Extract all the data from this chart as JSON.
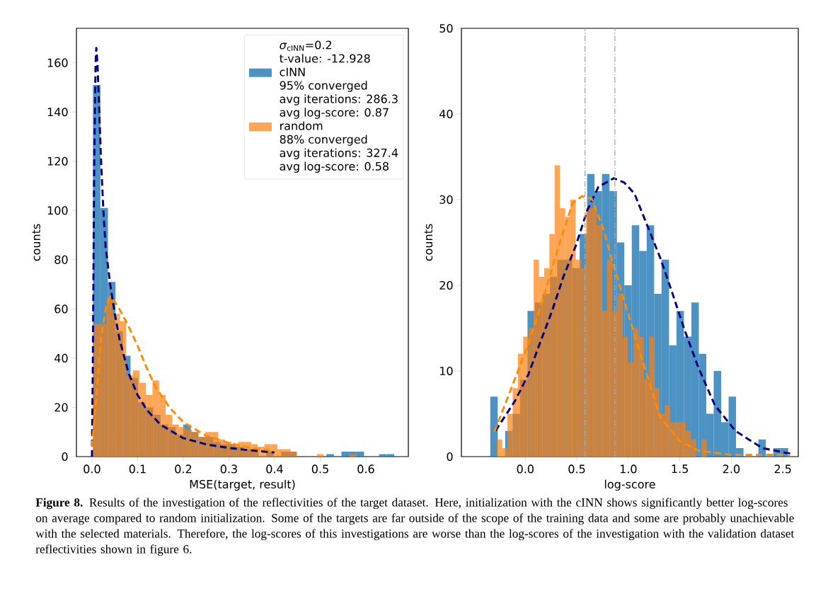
{
  "chart_data": [
    {
      "type": "histogram",
      "xlabel": "MSE(target, result)",
      "ylabel": "counts",
      "legend_title": "*σ*$_{cINN}$=0.2",
      "legend": "top right",
      "xlim": [
        -0.034,
        0.693
      ],
      "ylim": [
        0,
        174
      ],
      "xticks": [
        {
          "value": 0,
          "label": "0.0"
        },
        0.1,
        0.2,
        0.3,
        0.4,
        0.5,
        0.6
      ],
      "yticks": [
        0,
        20,
        40,
        60,
        80,
        100,
        120,
        140,
        160
      ],
      "annotations": [
        "t-value: -12.928",
        "95% converged",
        "avg iterations: 286.3",
        "avg log-score: 0.87",
        "88% converged",
        "avg iterations: 327.4",
        "avg log-score: 0.58"
      ],
      "series": [
        {
          "name": "cINN",
          "color": "#1f77b4",
          "bins": [
            0.002,
            0.0185,
            0.035,
            0.0515,
            0.068,
            0.0845,
            0.101,
            0.1175,
            0.134,
            0.1505,
            0.167,
            0.1835,
            0.2,
            0.2165,
            0.233,
            0.2495,
            0.266,
            0.2825,
            0.299,
            0.3155,
            0.332,
            0.3485,
            0.365,
            0.3815,
            0.398,
            0.4145,
            0.431,
            0.4475,
            0.464,
            0.4805,
            0.497,
            0.5135,
            0.53,
            0.5465,
            0.563,
            0.5795,
            0.596,
            0.6125,
            0.629,
            0.6455,
            0.662
          ],
          "values": [
            151,
            101,
            71,
            51,
            41,
            32,
            22,
            20,
            17,
            13,
            12,
            9,
            13,
            10,
            8,
            8,
            6,
            5,
            5,
            4,
            3,
            3,
            null,
            2,
            null,
            2,
            2,
            0,
            0,
            0,
            0,
            1,
            0,
            2,
            2,
            2,
            0,
            0,
            1,
            1
          ]
        },
        {
          "name": "random",
          "color": "#ff7f0e",
          "bins": [
            0.003,
            0.0174,
            0.0318,
            0.0462,
            0.0606,
            0.075,
            0.0894,
            0.1038,
            0.1182,
            0.1326,
            0.147,
            0.1614,
            0.1758,
            0.1902,
            0.2046,
            0.219,
            0.2334,
            0.2478,
            0.2622,
            0.2766,
            0.291,
            0.3054,
            0.3198,
            0.3342,
            0.3486,
            0.363,
            0.3774,
            0.3918,
            0.4062,
            0.4206,
            0.435,
            0.4494,
            0.4638,
            0.4782,
            0.4926,
            0.507,
            0.5214,
            0.5358,
            0.5502,
            0.5646,
            0.579
          ],
          "values": [
            54,
            54,
            64,
            58,
            55,
            33,
            35,
            30,
            25,
            31,
            25,
            17,
            13,
            12,
            11,
            10,
            8,
            10,
            10,
            7,
            6,
            5,
            6,
            6,
            5,
            4,
            5,
            5,
            3,
            3,
            2,
            0,
            0,
            0,
            1,
            0,
            0,
            0,
            0,
            1
          ]
        },
        {
          "type": "line",
          "color": "#000080",
          "line_style": "dashed",
          "x": [
            0.0,
            0.002,
            0.005,
            0.008,
            0.0095,
            0.012,
            0.016,
            0.02,
            0.025,
            0.03,
            0.04,
            0.05,
            0.06,
            0.08,
            0.1,
            0.12,
            0.15,
            0.2,
            0.25,
            0.3,
            0.35,
            0.4
          ],
          "values": [
            0,
            40,
            120,
            160,
            166,
            160,
            140,
            120,
            100,
            85,
            70,
            58,
            48,
            34,
            25,
            19,
            13,
            7.5,
            5,
            3.5,
            2.5,
            1.7
          ]
        },
        {
          "type": "line",
          "color": "#ff8c00",
          "line_style": "dashed",
          "x": [
            0.0,
            0.01,
            0.02,
            0.03,
            0.04,
            0.05,
            0.06,
            0.08,
            0.1,
            0.12,
            0.14,
            0.17,
            0.2,
            0.25,
            0.3,
            0.35,
            0.4
          ],
          "values": [
            4,
            25,
            48,
            60,
            65,
            63,
            60,
            53,
            45,
            36,
            28,
            20,
            14,
            8.5,
            5.5,
            3.5,
            2.5
          ]
        }
      ]
    },
    {
      "type": "histogram",
      "xlabel": "log-score",
      "ylabel": "counts",
      "xlim": [
        -0.62,
        2.65
      ],
      "ylim": [
        0,
        50
      ],
      "xticks": [
        {
          "value": 0,
          "label": "0.0"
        },
        0.5,
        {
          "value": 1,
          "label": "1.0"
        },
        1.5,
        {
          "value": 2,
          "label": "2.0"
        },
        2.5
      ],
      "yticks": [
        0,
        10,
        20,
        30,
        40,
        50
      ],
      "annotations": [
        "**Figure 8.** Results of the investigation of the reflectivities of the target dataset. Here, initialization with the cINN shows significantly better log-scores on average compared to random initialization. Some of the targets are far outside of the scope of the training data and some are probably unachievable with the selected materials. Therefore, the log-scores of this investigations are worse than the log-scores of the investigation with the validation dataset reflectivities shown in figure 6."
      ],
      "ref_lines": [
        {
          "axis": "x",
          "value": 0.58,
          "color": "#a9a9a9",
          "line_style": "dashdot"
        },
        {
          "axis": "x",
          "value": 0.87,
          "color": "#a9a9a9",
          "line_style": "dashdot"
        }
      ],
      "series": [
        {
          "color": "#1f77b4",
          "bins": [
            -0.34,
            -0.2677,
            -0.1954,
            -0.1231,
            -0.0508,
            0.0215,
            0.0938,
            0.1661,
            0.2384,
            0.3107,
            0.383,
            0.4553,
            0.5276,
            0.5999,
            0.6722,
            0.7445,
            0.8168,
            0.8891,
            0.9614,
            1.0337,
            1.106,
            1.1783,
            1.2506,
            1.3229,
            1.3952,
            1.4675,
            1.5398,
            1.6121,
            1.6844,
            1.7567,
            1.829,
            1.9013,
            1.9736,
            2.0459,
            2.1182,
            2.1905,
            2.2628,
            2.3351,
            2.4074,
            2.4797,
            2.552
          ],
          "values": [
            7,
            0,
            3,
            5,
            9,
            17,
            18,
            19,
            21,
            23,
            23,
            22,
            26,
            33,
            31,
            33,
            31,
            25,
            20,
            27,
            24,
            27,
            19,
            23,
            13,
            17,
            14,
            18,
            12,
            5,
            10,
            4,
            7,
            1,
            0,
            0,
            2,
            0,
            1,
            1
          ]
        },
        {
          "color": "#ff7f0e",
          "bins": [
            -0.275,
            -0.2241,
            -0.1732,
            -0.1223,
            -0.0714,
            -0.0205,
            0.0304,
            0.0813,
            0.1322,
            0.1831,
            0.234,
            0.2849,
            0.3358,
            0.3867,
            0.4376,
            0.4885,
            0.5394,
            0.5903,
            0.6412,
            0.6921,
            0.743,
            0.7939,
            0.8448,
            0.8957,
            0.9466,
            0.9975,
            1.0484,
            1.0993,
            1.1502,
            1.2011,
            1.252,
            1.3029,
            1.3538,
            1.4047,
            1.4556,
            1.5065,
            1.5574,
            1.6083,
            1.6592,
            1.7101,
            1.761
          ],
          "values": [
            2,
            1,
            5,
            8,
            12,
            14,
            15,
            23,
            21,
            22,
            26,
            34,
            29,
            28,
            30,
            23,
            22,
            29,
            29,
            27,
            17,
            23,
            17,
            19,
            14,
            11,
            15,
            14,
            9,
            14,
            8,
            5,
            6,
            4,
            4,
            4,
            3,
            2,
            0,
            2
          ]
        },
        {
          "type": "line",
          "color": "#000080",
          "line_style": "dashed",
          "x": [
            -0.29,
            -0.1,
            0.03,
            0.15,
            0.26,
            0.37,
            0.49,
            0.6,
            0.71,
            0.86,
            0.96,
            1.06,
            1.17,
            1.31,
            1.43,
            1.54,
            1.68,
            1.84,
            2.04,
            2.3,
            2.59
          ],
          "values": [
            3,
            6.5,
            9.6,
            13.5,
            17,
            21,
            24.6,
            28.7,
            31.5,
            32.5,
            32,
            30.7,
            27.4,
            23.2,
            19,
            15,
            10.4,
            6,
            3,
            1,
            0.3
          ]
        },
        {
          "type": "line",
          "color": "#ff8c00",
          "line_style": "dashed",
          "x": [
            -0.3,
            -0.135,
            0.027,
            0.165,
            0.325,
            0.46,
            0.55,
            0.645,
            0.76,
            0.85,
            0.99,
            1.13,
            1.31,
            1.5,
            1.68,
            2.0,
            2.57
          ],
          "values": [
            2.9,
            8,
            13.1,
            18.1,
            24.6,
            29.6,
            30.4,
            30.1,
            26.5,
            22.6,
            17,
            11.5,
            4.6,
            1.8,
            0.7,
            0.2,
            0.2
          ]
        }
      ]
    }
  ]
}
